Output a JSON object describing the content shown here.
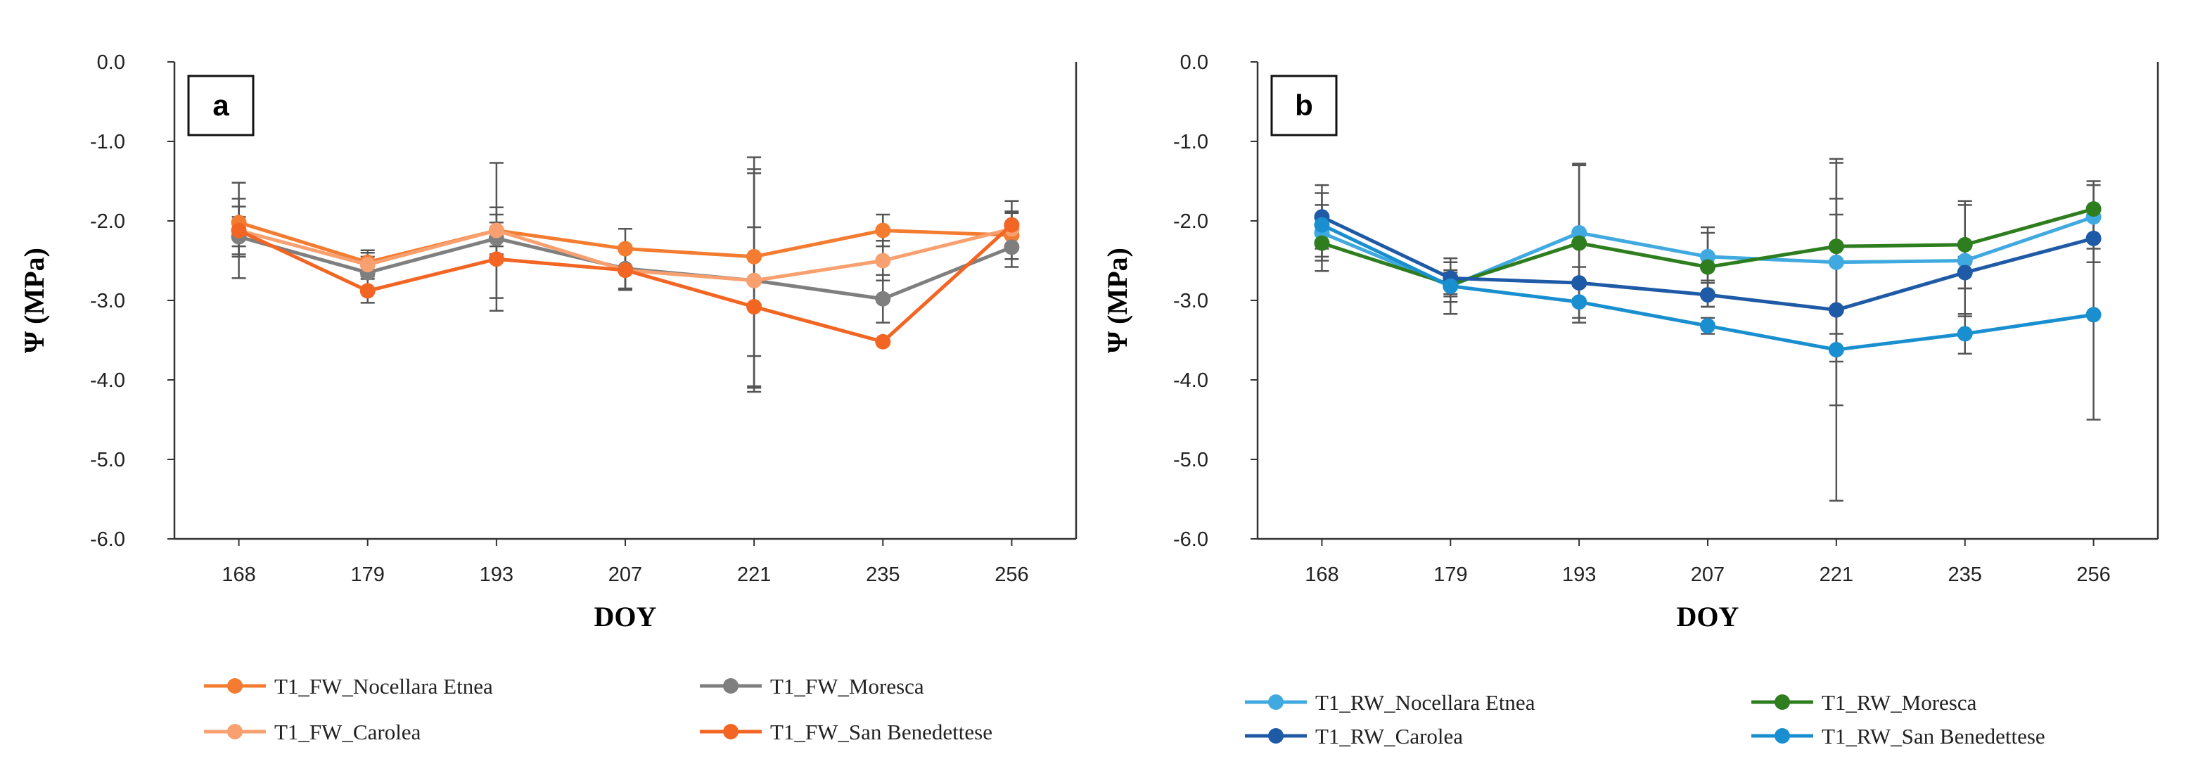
{
  "chart_data": [
    {
      "type": "line",
      "panel_label": "a",
      "xlabel": "DOY",
      "ylabel": "Ψ (MPa)",
      "categories": [
        "168",
        "179",
        "193",
        "207",
        "221",
        "235",
        "256"
      ],
      "ylim": [
        -6,
        0
      ],
      "yticks": [
        "0.0",
        "-1.0",
        "-2.0",
        "-3.0",
        "-4.0",
        "-5.0",
        "-6.0"
      ],
      "grid": false,
      "error_bar_color": "#555555",
      "series": [
        {
          "name": "T1_FW_Nocellara Etnea",
          "color": "#F47C30",
          "values": [
            -2.02,
            -2.52,
            -2.12,
            -2.35,
            -2.45,
            -2.12,
            -2.18
          ],
          "errors": [
            0.3,
            0.15,
            0.2,
            0.25,
            1.25,
            0.2,
            0.3
          ]
        },
        {
          "name": "T1_FW_Moresca",
          "color": "#7F7F7F",
          "values": [
            -2.2,
            -2.65,
            -2.22,
            -2.6,
            -2.75,
            -2.98,
            -2.33
          ],
          "errors": [
            0.25,
            0.2,
            0.2,
            0.25,
            1.35,
            0.3,
            0.25
          ]
        },
        {
          "name": "T1_FW_Carolea",
          "color": "#F8A070",
          "values": [
            -2.12,
            -2.55,
            -2.12,
            -2.62,
            -2.75,
            -2.5,
            -2.1
          ],
          "errors": [
            0.3,
            0.15,
            0.85,
            0.25,
            1.4,
            0.25,
            0.2
          ]
        },
        {
          "name": "T1_FW_San Benedettese",
          "color": "#F26522",
          "values": [
            -2.12,
            -2.88,
            -2.48,
            -2.62,
            -3.08,
            -3.52,
            -2.05
          ],
          "errors": [
            0.6,
            0.15,
            0.65,
            0.25,
            1.0,
            0.0,
            0.3
          ]
        }
      ]
    },
    {
      "type": "line",
      "panel_label": "b",
      "xlabel": "DOY",
      "ylabel": "Ψ (MPa)",
      "categories": [
        "168",
        "179",
        "193",
        "207",
        "221",
        "235",
        "256"
      ],
      "ylim": [
        -6,
        0
      ],
      "yticks": [
        "0.0",
        "-1.0",
        "-2.0",
        "-3.0",
        "-4.0",
        "-5.0",
        "-6.0"
      ],
      "grid": false,
      "error_bar_color": "#555555",
      "series": [
        {
          "name": "T1_RW_Nocellara Etnea",
          "color": "#3FA9E0",
          "values": [
            -2.15,
            -2.82,
            -2.15,
            -2.45,
            -2.52,
            -2.5,
            -1.95
          ],
          "errors": [
            0.35,
            0.2,
            0.85,
            0.3,
            1.25,
            0.7,
            0.4
          ]
        },
        {
          "name": "T1_RW_Moresca",
          "color": "#2E7D1F",
          "values": [
            -2.28,
            -2.8,
            -2.28,
            -2.58,
            -2.32,
            -2.3,
            -1.85
          ],
          "errors": [
            0.35,
            0.15,
            1.0,
            0.5,
            1.1,
            0.55,
            0.35
          ]
        },
        {
          "name": "T1_RW_Carolea",
          "color": "#1F5AA6",
          "values": [
            -1.95,
            -2.72,
            -2.78,
            -2.93,
            -3.12,
            -2.65,
            -2.22
          ],
          "errors": [
            0.4,
            0.2,
            0.2,
            0.15,
            1.2,
            0.2,
            0.3
          ]
        },
        {
          "name": "T1_RW_San Benedettese",
          "color": "#1A8FD0",
          "values": [
            -2.05,
            -2.82,
            -3.02,
            -3.32,
            -3.62,
            -3.42,
            -3.18
          ],
          "errors": [
            0.4,
            0.35,
            0.2,
            0.1,
            1.9,
            0.25,
            1.32
          ]
        }
      ]
    }
  ]
}
